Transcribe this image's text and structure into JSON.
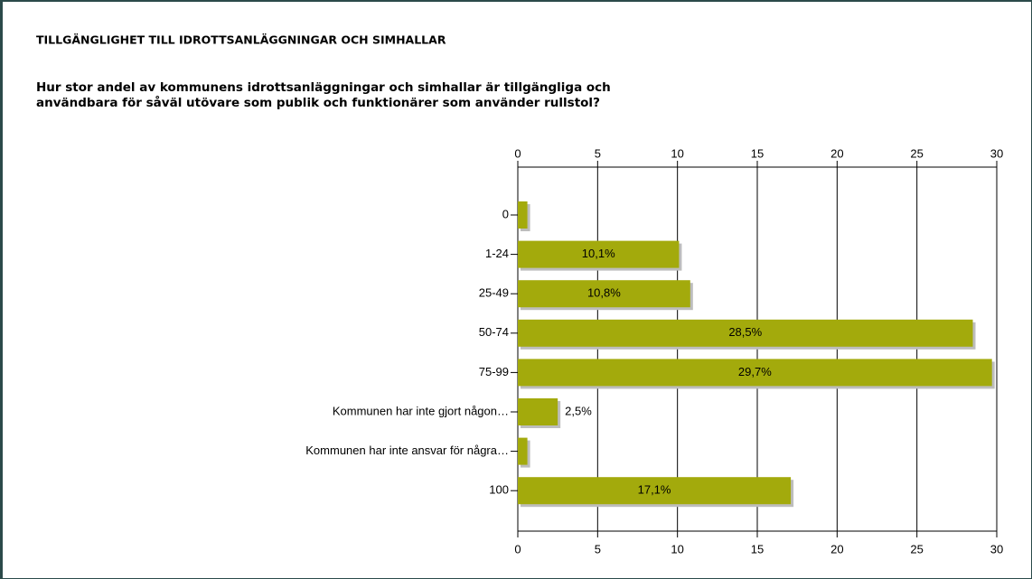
{
  "chart_data": {
    "type": "hbar",
    "title": "TILLGÄNGLIGHET TILL IDROTTSANLÄGGNINGAR OCH SIMHALLAR",
    "subtitle": [
      "Hur stor andel av kommunens idrottsanläggningar och simhallar är tillgängliga och",
      "användbara för såväl utövare som publik och funktionärer som använder rullstol?"
    ],
    "categories": [
      "0",
      "1-24",
      "25-49",
      "50-74",
      "75-99",
      "Kommunen har inte gjort någon…",
      "Kommunen har inte ansvar för några…",
      "100"
    ],
    "values": [
      0.6,
      10.1,
      10.8,
      28.5,
      29.7,
      2.5,
      0.6,
      17.1
    ],
    "value_labels": [
      null,
      "10,1%",
      "10,8%",
      "28,5%",
      "29,7%",
      "2,5%",
      null,
      "17,1%"
    ],
    "color": "#a3aa0c",
    "xlim": [
      0,
      30
    ],
    "xticks": [
      0,
      5,
      10,
      15,
      20,
      25,
      30
    ],
    "grid": true
  }
}
